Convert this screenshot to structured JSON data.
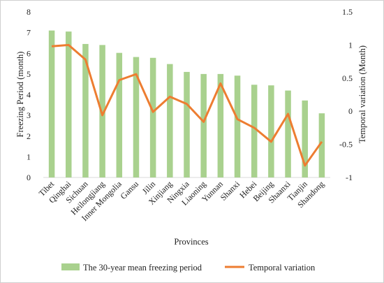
{
  "chart_data": {
    "type": "bar",
    "categories": [
      "Tibet",
      "Qinghai",
      "Sichuan",
      "Heilongjiang",
      "Inner Mongolia",
      "Gansu",
      "Jilin",
      "Xinjiang",
      "Ningxia",
      "Liaoning",
      "Yunnan",
      "Shanxi",
      "Hebei",
      "Beijing",
      "Shaanxi",
      "Tianjin",
      "Shandong"
    ],
    "series": [
      {
        "name": "The 30-year mean freezing period",
        "type": "bar",
        "axis": "left",
        "color": "#a9d18e",
        "values": [
          7.1,
          7.05,
          6.45,
          6.4,
          6.02,
          5.82,
          5.78,
          5.48,
          5.1,
          5.0,
          5.0,
          4.92,
          4.48,
          4.45,
          4.2,
          3.72,
          3.1
        ]
      },
      {
        "name": "Temporal variation",
        "type": "line",
        "axis": "right",
        "color": "#ed7d31",
        "values": [
          0.98,
          1.0,
          0.78,
          -0.06,
          0.47,
          0.56,
          -0.01,
          0.22,
          0.11,
          -0.16,
          0.42,
          -0.12,
          -0.25,
          -0.46,
          -0.04,
          -0.82,
          -0.46
        ]
      }
    ],
    "xlabel": "Provinces",
    "ylabel": "Freezing Period (month)",
    "y2label": "Temporal variation (Month)",
    "ylim": [
      0,
      8
    ],
    "y2lim": [
      -1,
      1.5
    ],
    "yticks": [
      "0",
      "1",
      "2",
      "3",
      "4",
      "5",
      "6",
      "7",
      "8"
    ],
    "y2ticks": [
      "-1",
      "-0.5",
      "0",
      "0.5",
      "1",
      "1.5"
    ],
    "grid": false,
    "legend": "bottom"
  }
}
